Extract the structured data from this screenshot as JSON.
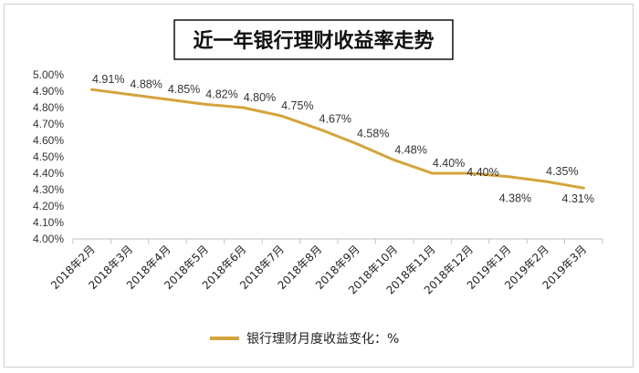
{
  "chart_data": {
    "type": "line",
    "title": "近一年银行理财收益率走势",
    "categories": [
      "2018年2月",
      "2018年3月",
      "2018年4月",
      "2018年5月",
      "2018年6月",
      "2018年7月",
      "2018年8月",
      "2018年9月",
      "2018年10月",
      "2018年11月",
      "2018年12月",
      "2019年1月",
      "2019年2月",
      "2019年3月"
    ],
    "series": [
      {
        "name": "银行理财月度收益变化：%",
        "values": [
          4.91,
          4.88,
          4.85,
          4.82,
          4.8,
          4.75,
          4.67,
          4.58,
          4.48,
          4.4,
          4.4,
          4.38,
          4.35,
          4.31
        ],
        "labels": [
          "4.91%",
          "4.88%",
          "4.85%",
          "4.82%",
          "4.80%",
          "4.75%",
          "4.67%",
          "4.58%",
          "4.48%",
          "4.40%",
          "4.40%",
          "4.38%",
          "4.35%",
          "4.31%"
        ],
        "color": "#d4a43a"
      }
    ],
    "yticks": [
      "4.00%",
      "4.10%",
      "4.20%",
      "4.30%",
      "4.40%",
      "4.50%",
      "4.60%",
      "4.70%",
      "4.80%",
      "4.90%",
      "5.00%"
    ],
    "ylim": [
      4.0,
      5.0
    ],
    "grid": false,
    "legend": "bottom"
  }
}
